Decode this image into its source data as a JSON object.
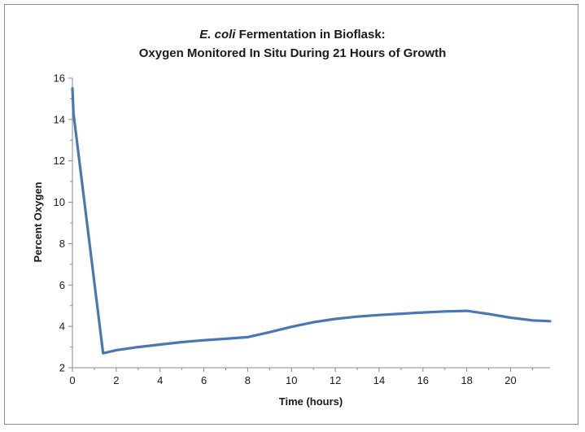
{
  "chart_data": {
    "type": "line",
    "title_italic": "E. coli",
    "title_rest": " Fermentation in Bioflask:",
    "subtitle": "Oxygen Monitored In Situ During 21 Hours of Growth",
    "xlabel": "Time (hours)",
    "ylabel": "Percent Oxygen",
    "xlim": [
      0,
      21.8
    ],
    "ylim": [
      2,
      16
    ],
    "x_ticks": [
      0,
      2,
      4,
      6,
      8,
      10,
      12,
      14,
      16,
      18,
      20
    ],
    "y_ticks": [
      2,
      4,
      6,
      8,
      10,
      12,
      14,
      16
    ],
    "grid": false,
    "legend": "none",
    "series": [
      {
        "color": "#4a76b4",
        "points": [
          [
            0,
            15.5
          ],
          [
            0.05,
            14.3
          ],
          [
            1.4,
            2.7
          ],
          [
            2,
            2.85
          ],
          [
            3,
            3.0
          ],
          [
            4,
            3.12
          ],
          [
            5,
            3.24
          ],
          [
            6,
            3.33
          ],
          [
            7,
            3.4
          ],
          [
            8,
            3.48
          ],
          [
            9,
            3.72
          ],
          [
            10,
            3.98
          ],
          [
            11,
            4.2
          ],
          [
            12,
            4.36
          ],
          [
            13,
            4.47
          ],
          [
            14,
            4.55
          ],
          [
            15,
            4.61
          ],
          [
            16,
            4.67
          ],
          [
            17,
            4.72
          ],
          [
            18,
            4.75
          ],
          [
            19,
            4.6
          ],
          [
            20,
            4.42
          ],
          [
            21,
            4.29
          ],
          [
            21.8,
            4.25
          ]
        ]
      }
    ]
  }
}
